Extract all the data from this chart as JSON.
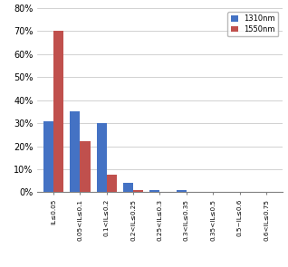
{
  "categories": [
    "IL≤0.05",
    "0.05<IL≤0.1",
    "0.1<IL≤0.2",
    "0.2<IL≤0.25",
    "0.25<IL≤0.3",
    "0.3<IL≤0.35",
    "0.35<IL≤0.5",
    "0.5~IL≤0.6",
    "0.6<IL≤0.75"
  ],
  "values_1310": [
    31,
    35,
    30,
    4,
    1,
    1,
    0,
    0,
    0
  ],
  "values_1550": [
    70,
    22,
    7.5,
    1,
    0,
    0,
    0,
    0,
    0
  ],
  "color_1310": "#4472C4",
  "color_1550": "#C0504D",
  "legend_1310": "1310nm",
  "legend_1550": "1550nm",
  "ylim": [
    0,
    80
  ],
  "yticks": [
    0,
    10,
    20,
    30,
    40,
    50,
    60,
    70,
    80
  ],
  "bar_width": 0.38,
  "background_color": "#FFFFFF",
  "grid_color": "#BFBFBF"
}
